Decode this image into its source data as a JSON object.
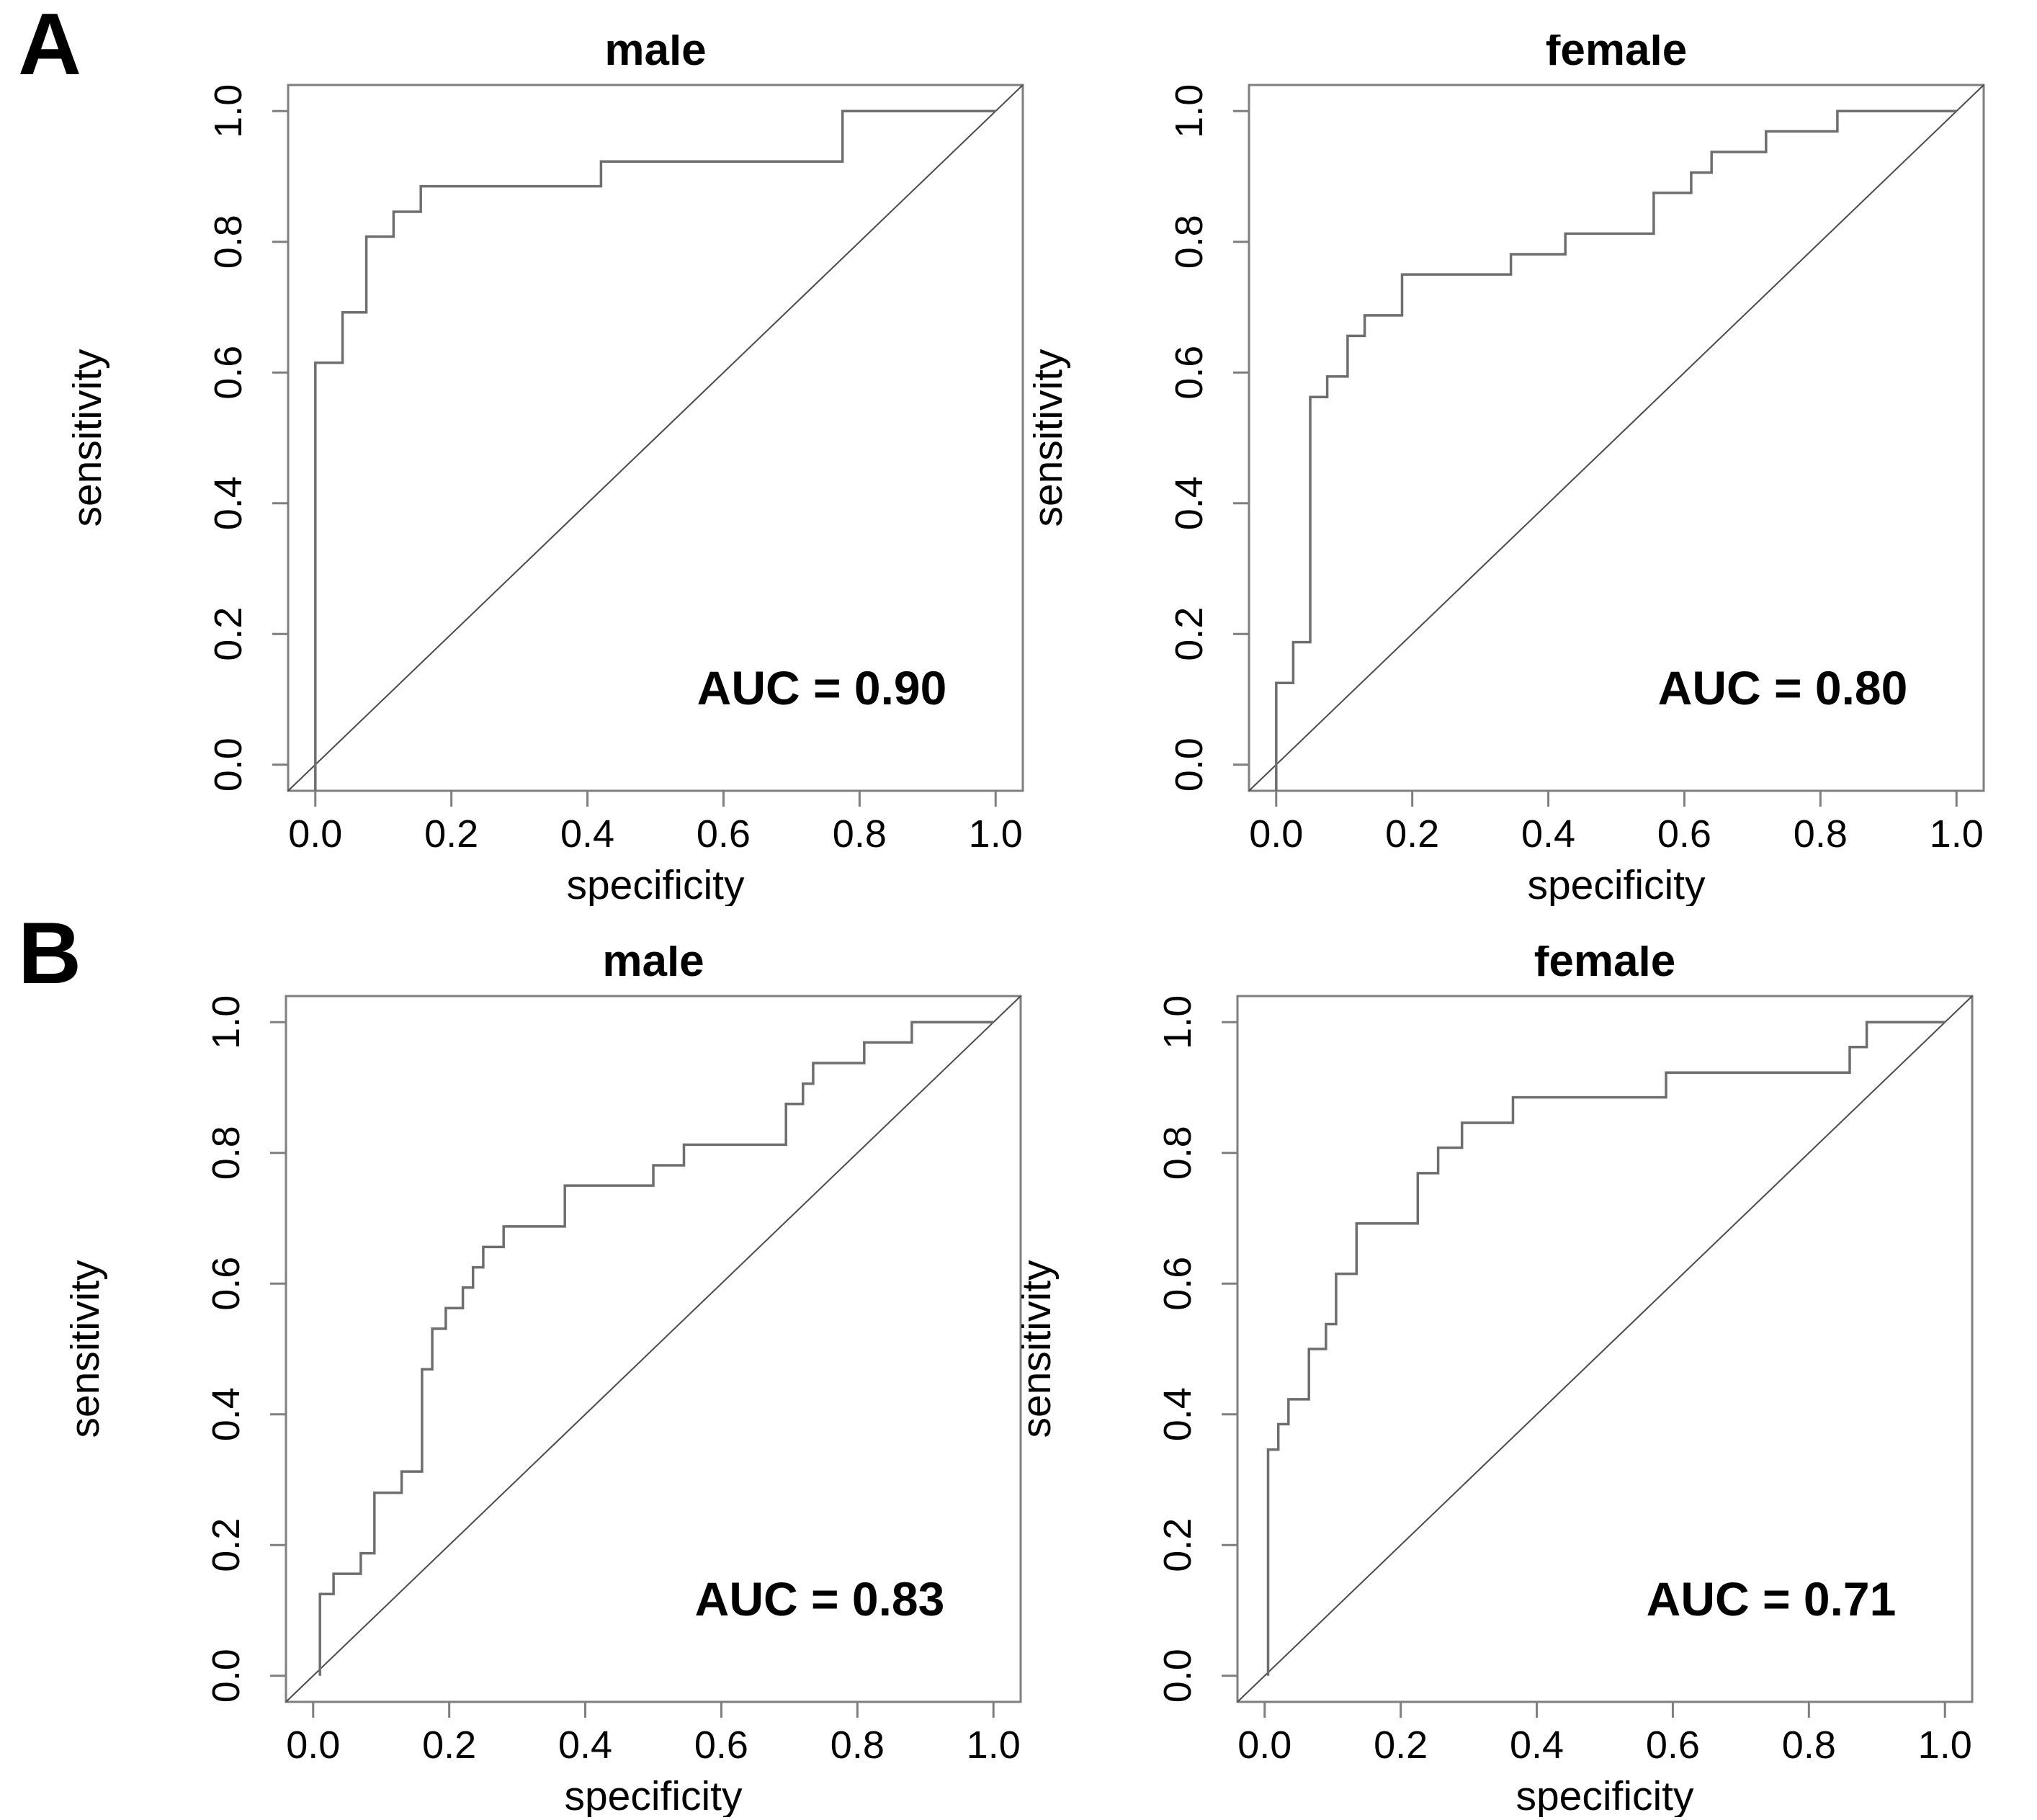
{
  "page": {
    "panels": [
      {
        "label": "A"
      },
      {
        "label": "B"
      }
    ]
  },
  "chart_data": [
    {
      "id": "panel-a-male",
      "panel": "A",
      "type": "line",
      "title": "male",
      "xlabel": "specificity",
      "ylabel": "sensitivity",
      "auc": 0.9,
      "auc_label": "AUC = 0.90",
      "x_ticks": [
        "0.0",
        "0.2",
        "0.4",
        "0.6",
        "0.8",
        "1.0"
      ],
      "y_ticks": [
        "0.0",
        "0.2",
        "0.4",
        "0.6",
        "0.8",
        "1.0"
      ],
      "xlim": [
        0,
        1
      ],
      "ylim": [
        0,
        1
      ],
      "legend": "none",
      "grid": false,
      "reference_line": "diagonal (0,0)-(1,1)",
      "roc_points": [
        [
          0,
          -0.04
        ],
        [
          0,
          0.615
        ],
        [
          0.04,
          0.615
        ],
        [
          0.04,
          0.692
        ],
        [
          0.075,
          0.692
        ],
        [
          0.075,
          0.808
        ],
        [
          0.115,
          0.808
        ],
        [
          0.115,
          0.846
        ],
        [
          0.155,
          0.846
        ],
        [
          0.155,
          0.885
        ],
        [
          0.42,
          0.885
        ],
        [
          0.42,
          0.923
        ],
        [
          0.775,
          0.923
        ],
        [
          0.775,
          1.0
        ],
        [
          1.0,
          1.0
        ]
      ]
    },
    {
      "id": "panel-a-female",
      "panel": "A",
      "type": "line",
      "title": "female",
      "xlabel": "specificity",
      "ylabel": "sensitivity",
      "auc": 0.8,
      "auc_label": "AUC = 0.80",
      "x_ticks": [
        "0.0",
        "0.2",
        "0.4",
        "0.6",
        "0.8",
        "1.0"
      ],
      "y_ticks": [
        "0.0",
        "0.2",
        "0.4",
        "0.6",
        "0.8",
        "1.0"
      ],
      "xlim": [
        0,
        1
      ],
      "ylim": [
        0,
        1
      ],
      "legend": "none",
      "grid": false,
      "reference_line": "diagonal (0,0)-(1,1)",
      "roc_points": [
        [
          0,
          -0.04
        ],
        [
          0,
          0.125
        ],
        [
          0.025,
          0.125
        ],
        [
          0.025,
          0.1875
        ],
        [
          0.05,
          0.1875
        ],
        [
          0.05,
          0.5625
        ],
        [
          0.075,
          0.5625
        ],
        [
          0.075,
          0.594
        ],
        [
          0.105,
          0.594
        ],
        [
          0.105,
          0.656
        ],
        [
          0.13,
          0.656
        ],
        [
          0.13,
          0.6875
        ],
        [
          0.185,
          0.6875
        ],
        [
          0.185,
          0.75
        ],
        [
          0.345,
          0.75
        ],
        [
          0.345,
          0.781
        ],
        [
          0.425,
          0.781
        ],
        [
          0.425,
          0.8125
        ],
        [
          0.555,
          0.8125
        ],
        [
          0.555,
          0.875
        ],
        [
          0.61,
          0.875
        ],
        [
          0.61,
          0.906
        ],
        [
          0.64,
          0.906
        ],
        [
          0.64,
          0.9375
        ],
        [
          0.72,
          0.9375
        ],
        [
          0.72,
          0.969
        ],
        [
          0.825,
          0.969
        ],
        [
          0.825,
          1.0
        ],
        [
          1.0,
          1.0
        ]
      ]
    },
    {
      "id": "panel-b-male",
      "panel": "B",
      "type": "line",
      "title": "male",
      "xlabel": "specificity",
      "ylabel": "sensitivity",
      "auc": 0.83,
      "auc_label": "AUC = 0.83",
      "x_ticks": [
        "0.0",
        "0.2",
        "0.4",
        "0.6",
        "0.8",
        "1.0"
      ],
      "y_ticks": [
        "0.0",
        "0.2",
        "0.4",
        "0.6",
        "0.8",
        "1.0"
      ],
      "xlim": [
        0,
        1
      ],
      "ylim": [
        0,
        1
      ],
      "legend": "none",
      "grid": false,
      "reference_line": "diagonal (0,0)-(1,1)",
      "roc_points": [
        [
          0.01,
          0
        ],
        [
          0.01,
          0.125
        ],
        [
          0.03,
          0.125
        ],
        [
          0.03,
          0.156
        ],
        [
          0.07,
          0.156
        ],
        [
          0.07,
          0.1875
        ],
        [
          0.09,
          0.1875
        ],
        [
          0.09,
          0.28
        ],
        [
          0.13,
          0.28
        ],
        [
          0.13,
          0.3125
        ],
        [
          0.16,
          0.3125
        ],
        [
          0.16,
          0.469
        ],
        [
          0.175,
          0.469
        ],
        [
          0.175,
          0.531
        ],
        [
          0.195,
          0.531
        ],
        [
          0.195,
          0.5625
        ],
        [
          0.22,
          0.5625
        ],
        [
          0.22,
          0.594
        ],
        [
          0.235,
          0.594
        ],
        [
          0.235,
          0.625
        ],
        [
          0.25,
          0.625
        ],
        [
          0.25,
          0.656
        ],
        [
          0.28,
          0.656
        ],
        [
          0.28,
          0.6875
        ],
        [
          0.37,
          0.6875
        ],
        [
          0.37,
          0.75
        ],
        [
          0.5,
          0.75
        ],
        [
          0.5,
          0.781
        ],
        [
          0.545,
          0.781
        ],
        [
          0.545,
          0.8125
        ],
        [
          0.695,
          0.8125
        ],
        [
          0.695,
          0.875
        ],
        [
          0.72,
          0.875
        ],
        [
          0.72,
          0.906
        ],
        [
          0.735,
          0.906
        ],
        [
          0.735,
          0.9375
        ],
        [
          0.81,
          0.9375
        ],
        [
          0.81,
          0.969
        ],
        [
          0.88,
          0.969
        ],
        [
          0.88,
          1.0
        ],
        [
          1.0,
          1.0
        ]
      ]
    },
    {
      "id": "panel-b-female",
      "panel": "B",
      "type": "line",
      "title": "female",
      "xlabel": "specificity",
      "ylabel": "sensitivity",
      "auc": 0.71,
      "auc_label": "AUC = 0.71",
      "x_ticks": [
        "0.0",
        "0.2",
        "0.4",
        "0.6",
        "0.8",
        "1.0"
      ],
      "y_ticks": [
        "0.0",
        "0.2",
        "0.4",
        "0.6",
        "0.8",
        "1.0"
      ],
      "xlim": [
        0,
        1
      ],
      "ylim": [
        0,
        1
      ],
      "legend": "none",
      "grid": false,
      "reference_line": "diagonal (0,0)-(1,1)",
      "roc_points": [
        [
          0.005,
          0
        ],
        [
          0.005,
          0.346
        ],
        [
          0.02,
          0.346
        ],
        [
          0.02,
          0.385
        ],
        [
          0.035,
          0.385
        ],
        [
          0.035,
          0.423
        ],
        [
          0.065,
          0.423
        ],
        [
          0.065,
          0.5
        ],
        [
          0.09,
          0.5
        ],
        [
          0.09,
          0.538
        ],
        [
          0.105,
          0.538
        ],
        [
          0.105,
          0.615
        ],
        [
          0.135,
          0.615
        ],
        [
          0.135,
          0.692
        ],
        [
          0.225,
          0.692
        ],
        [
          0.225,
          0.769
        ],
        [
          0.255,
          0.769
        ],
        [
          0.255,
          0.808
        ],
        [
          0.29,
          0.808
        ],
        [
          0.29,
          0.846
        ],
        [
          0.365,
          0.846
        ],
        [
          0.365,
          0.885
        ],
        [
          0.59,
          0.885
        ],
        [
          0.59,
          0.923
        ],
        [
          0.86,
          0.923
        ],
        [
          0.86,
          0.962
        ],
        [
          0.885,
          0.962
        ],
        [
          0.885,
          1.0
        ],
        [
          1.0,
          1.0
        ]
      ]
    }
  ]
}
